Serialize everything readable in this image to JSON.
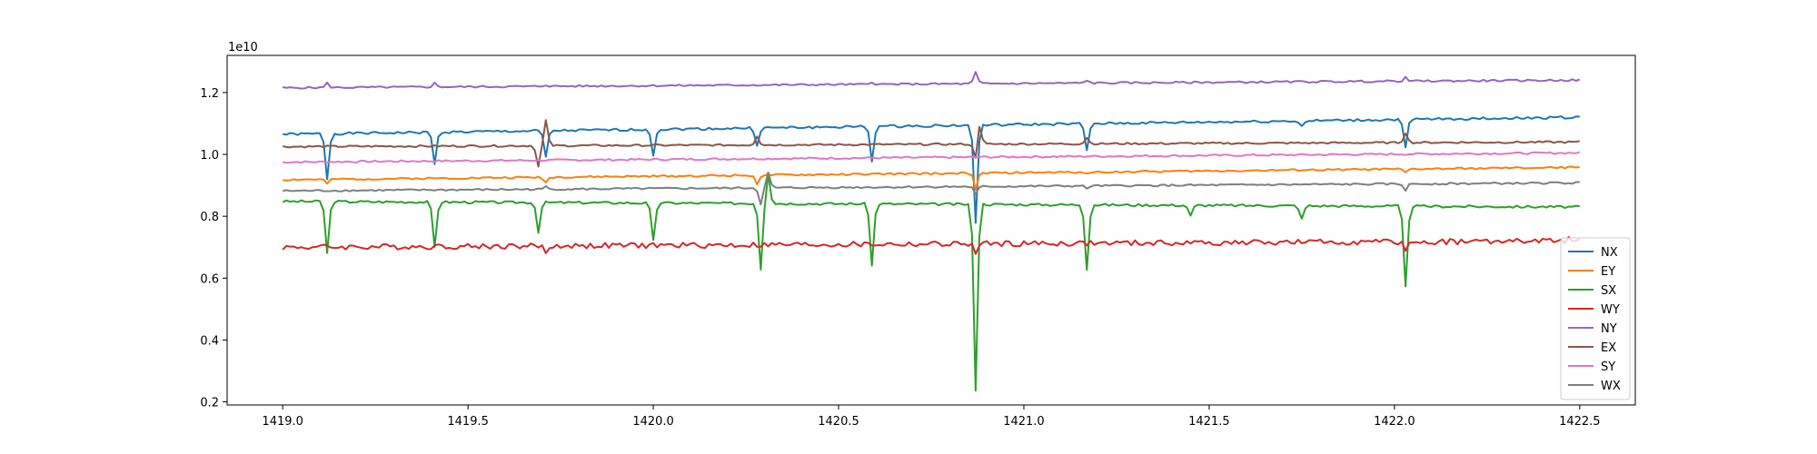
{
  "chart_data": {
    "type": "line",
    "title": "",
    "xlabel": "",
    "ylabel": "",
    "y_offset_label": "1e10",
    "xlim": [
      1418.85,
      1422.65
    ],
    "ylim": [
      0.19,
      1.32
    ],
    "x_ticks": [
      1419.0,
      1419.5,
      1420.0,
      1420.5,
      1421.0,
      1421.5,
      1422.0,
      1422.5
    ],
    "x_tick_labels": [
      "1419.0",
      "1419.5",
      "1420.0",
      "1420.5",
      "1421.0",
      "1421.5",
      "1422.0",
      "1422.5"
    ],
    "y_ticks": [
      0.2,
      0.4,
      0.6,
      0.8,
      1.0,
      1.2
    ],
    "y_tick_labels": [
      "0.2",
      "0.4",
      "0.6",
      "0.8",
      "1.0",
      "1.2"
    ],
    "grid": false,
    "legend_position": "lower-right",
    "x_start": 1419.0,
    "x_end": 1422.5,
    "series": [
      {
        "name": "NX",
        "color": "#1f77b4",
        "base_start": 1.065,
        "base_end": 1.12,
        "noise": 0.004,
        "events": [
          {
            "x": 1419.12,
            "y": 0.92
          },
          {
            "x": 1419.41,
            "y": 0.97
          },
          {
            "x": 1419.71,
            "y": 0.99
          },
          {
            "x": 1420.0,
            "y": 1.0
          },
          {
            "x": 1420.28,
            "y": 1.03
          },
          {
            "x": 1420.59,
            "y": 0.98
          },
          {
            "x": 1420.87,
            "y": 0.78
          },
          {
            "x": 1421.17,
            "y": 1.01
          },
          {
            "x": 1421.75,
            "y": 1.09
          },
          {
            "x": 1422.03,
            "y": 1.02
          }
        ]
      },
      {
        "name": "EY",
        "color": "#ff7f0e",
        "base_start": 0.918,
        "base_end": 0.958,
        "noise": 0.003,
        "events": [
          {
            "x": 1419.12,
            "y": 0.905
          },
          {
            "x": 1419.71,
            "y": 0.91
          },
          {
            "x": 1420.28,
            "y": 0.905
          },
          {
            "x": 1420.87,
            "y": 0.885
          },
          {
            "x": 1421.17,
            "y": 0.935
          },
          {
            "x": 1422.03,
            "y": 0.94
          }
        ]
      },
      {
        "name": "SX",
        "color": "#2ca02c",
        "base_start": 0.848,
        "base_end": 0.83,
        "noise": 0.004,
        "events": [
          {
            "x": 1419.12,
            "y": 0.68
          },
          {
            "x": 1419.41,
            "y": 0.7
          },
          {
            "x": 1419.69,
            "y": 0.75
          },
          {
            "x": 1420.0,
            "y": 0.72
          },
          {
            "x": 1420.29,
            "y": 0.63
          },
          {
            "x": 1420.31,
            "y": 0.94
          },
          {
            "x": 1420.59,
            "y": 0.64
          },
          {
            "x": 1420.87,
            "y": 0.24
          },
          {
            "x": 1421.17,
            "y": 0.63
          },
          {
            "x": 1421.45,
            "y": 0.8
          },
          {
            "x": 1421.75,
            "y": 0.79
          },
          {
            "x": 1422.03,
            "y": 0.57
          }
        ]
      },
      {
        "name": "WY",
        "color": "#d62728",
        "base_start": 0.7,
        "base_end": 0.72,
        "noise": 0.009,
        "events": [
          {
            "x": 1419.71,
            "y": 0.68
          },
          {
            "x": 1420.87,
            "y": 0.68
          },
          {
            "x": 1422.03,
            "y": 0.68
          },
          {
            "x": 1422.47,
            "y": 0.735
          }
        ]
      },
      {
        "name": "NY",
        "color": "#9467bd",
        "base_start": 1.215,
        "base_end": 1.24,
        "noise": 0.003,
        "events": [
          {
            "x": 1419.12,
            "y": 1.23
          },
          {
            "x": 1419.41,
            "y": 1.23
          },
          {
            "x": 1419.71,
            "y": 1.225
          },
          {
            "x": 1420.59,
            "y": 1.235
          },
          {
            "x": 1420.87,
            "y": 1.265
          },
          {
            "x": 1421.17,
            "y": 1.24
          },
          {
            "x": 1422.03,
            "y": 1.248
          }
        ]
      },
      {
        "name": "EX",
        "color": "#8c564b",
        "base_start": 1.025,
        "base_end": 1.04,
        "noise": 0.003,
        "events": [
          {
            "x": 1419.69,
            "y": 0.96
          },
          {
            "x": 1419.71,
            "y": 1.11
          },
          {
            "x": 1420.28,
            "y": 1.06
          },
          {
            "x": 1420.87,
            "y": 0.98
          },
          {
            "x": 1420.88,
            "y": 1.1
          },
          {
            "x": 1421.17,
            "y": 1.055
          },
          {
            "x": 1422.03,
            "y": 1.07
          }
        ]
      },
      {
        "name": "SY",
        "color": "#e377c2",
        "base_start": 0.975,
        "base_end": 1.005,
        "noise": 0.003,
        "events": []
      },
      {
        "name": "WX",
        "color": "#7f7f7f",
        "base_start": 0.882,
        "base_end": 0.908,
        "noise": 0.003,
        "events": [
          {
            "x": 1419.71,
            "y": 0.895
          },
          {
            "x": 1420.29,
            "y": 0.84
          },
          {
            "x": 1420.31,
            "y": 0.94
          },
          {
            "x": 1420.87,
            "y": 0.87
          },
          {
            "x": 1421.17,
            "y": 0.89
          },
          {
            "x": 1422.03,
            "y": 0.885
          }
        ]
      }
    ]
  }
}
